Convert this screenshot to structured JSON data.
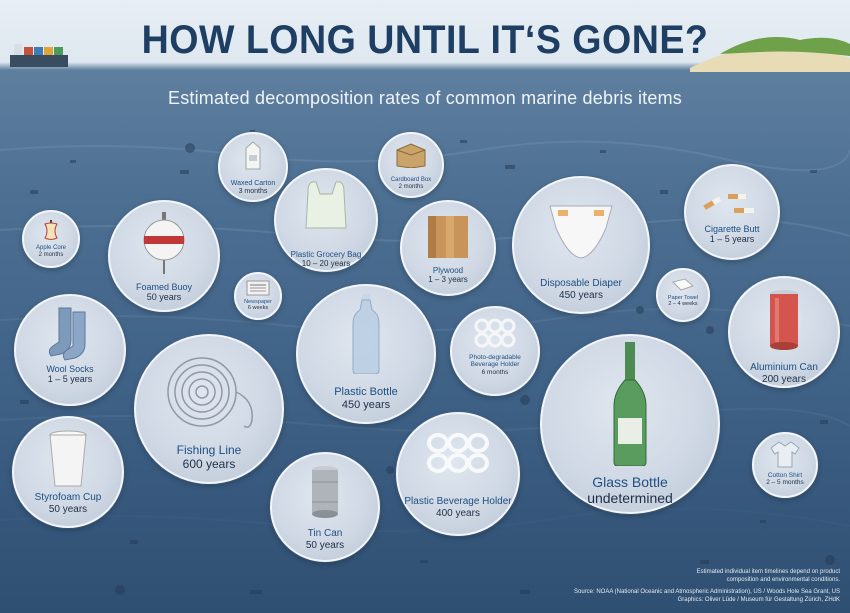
{
  "title": "HOW LONG UNTIL IT‘S GONE?",
  "subtitle": "Estimated decomposition rates of common marine debris items",
  "items": {
    "apple_core": {
      "name": "Apple Core",
      "time": "2 months"
    },
    "waxed_carton": {
      "name": "Waxed Carton",
      "time": "3 months"
    },
    "cardboard_box": {
      "name": "Cardboard Box",
      "time": "2 months"
    },
    "plastic_grocery_bag": {
      "name": "Plastic Grocery Bag",
      "time": "10 – 20 years"
    },
    "foamed_buoy": {
      "name": "Foamed Buoy",
      "time": "50 years"
    },
    "plywood": {
      "name": "Plywood",
      "time": "1 – 3 years"
    },
    "disposable_diaper": {
      "name": "Disposable Diaper",
      "time": "450 years"
    },
    "cigarette_butt": {
      "name": "Cigarette Butt",
      "time": "1 – 5 years"
    },
    "newspaper": {
      "name": "Newspaper",
      "time": "6 weeks"
    },
    "paper_towel": {
      "name": "Paper Towel",
      "time": "2 – 4 weeks"
    },
    "wool_socks": {
      "name": "Wool Socks",
      "time": "1 – 5 years"
    },
    "plastic_bottle": {
      "name": "Plastic Bottle",
      "time": "450 years"
    },
    "photo_holder": {
      "name_line1": "Photo-degradable",
      "name_line2": "Beverage Holder",
      "time": "6 months"
    },
    "aluminium_can": {
      "name": "Aluminium Can",
      "time": "200 years"
    },
    "fishing_line": {
      "name": "Fishing Line",
      "time": "600 years"
    },
    "glass_bottle": {
      "name": "Glass Bottle",
      "time": "undetermined"
    },
    "styrofoam_cup": {
      "name": "Styrofoam Cup",
      "time": "50 years"
    },
    "tin_can": {
      "name": "Tin Can",
      "time": "50 years"
    },
    "plastic_holder": {
      "name": "Plastic Beverage Holder",
      "time": "400 years"
    },
    "cotton_shirt": {
      "name": "Cotton Shirt",
      "time": "2 – 5 months"
    }
  },
  "footnote": {
    "line1": "Estimated individual item timelines depend on product",
    "line2": "composition and environmental conditions.",
    "source1": "Source: NOAA (National Oceanic and Atmospheric Administration), US / Woods Hole Sea Grant, US",
    "source2": "Graphics: Oliver Lüde / Museum für Gestaltung Zürich, ZHdK"
  },
  "colors": {
    "title": "#1e3f63",
    "sea": "#4c6f92",
    "bubble": "#d3dce7",
    "name_text": "#1f4f82"
  }
}
